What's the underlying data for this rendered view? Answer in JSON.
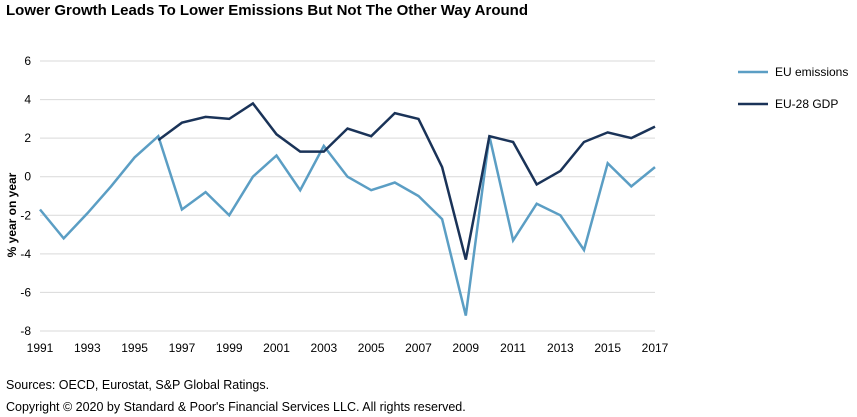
{
  "title": "Lower Growth Leads To Lower Emissions But Not The Other Way Around",
  "footer": {
    "sources": "Sources: OECD, Eurostat, S&P Global Ratings.",
    "copyright": "Copyright © 2020 by Standard & Poor's Financial Services LLC. All rights reserved."
  },
  "colors": {
    "emissions": "#5b9ec4",
    "gdp": "#1a3358",
    "grid": "#d9d9d9"
  },
  "chart_data": {
    "type": "line",
    "title": "Lower Growth Leads To Lower Emissions But Not The Other Way Around",
    "xlabel": "",
    "ylabel": "% year on year",
    "xlim": [
      1991,
      2017
    ],
    "ylim": [
      -8,
      6
    ],
    "yticks": [
      6,
      4,
      2,
      0,
      -2,
      -4,
      -6,
      -8
    ],
    "xticks": [
      1991,
      1993,
      1995,
      1997,
      1999,
      2001,
      2003,
      2005,
      2007,
      2009,
      2011,
      2013,
      2015,
      2017
    ],
    "grid": true,
    "legend_position": "right",
    "series": [
      {
        "name": "EU emissions",
        "x": [
          1991,
          1992,
          1993,
          1994,
          1995,
          1996,
          1997,
          1998,
          1999,
          2000,
          2001,
          2002,
          2003,
          2004,
          2005,
          2006,
          2007,
          2008,
          2009,
          2010,
          2011,
          2012,
          2013,
          2014,
          2015,
          2016,
          2017
        ],
        "values": [
          -1.7,
          -3.2,
          -1.9,
          -0.5,
          1.0,
          2.1,
          -1.7,
          -0.8,
          -2.0,
          0.0,
          1.1,
          -0.7,
          1.6,
          0.0,
          -0.7,
          -0.3,
          -1.0,
          -2.2,
          -7.2,
          2.1,
          -3.3,
          -1.4,
          -2.0,
          -3.8,
          0.7,
          -0.5,
          0.5
        ]
      },
      {
        "name": "EU-28 GDP",
        "x": [
          1996,
          1997,
          1998,
          1999,
          2000,
          2001,
          2002,
          2003,
          2004,
          2005,
          2006,
          2007,
          2008,
          2009,
          2010,
          2011,
          2012,
          2013,
          2014,
          2015,
          2016,
          2017
        ],
        "values": [
          1.9,
          2.8,
          3.1,
          3.0,
          3.8,
          2.2,
          1.3,
          1.3,
          2.5,
          2.1,
          3.3,
          3.0,
          0.5,
          -4.3,
          2.1,
          1.8,
          -0.4,
          0.3,
          1.8,
          2.3,
          2.0,
          2.6
        ]
      }
    ]
  }
}
